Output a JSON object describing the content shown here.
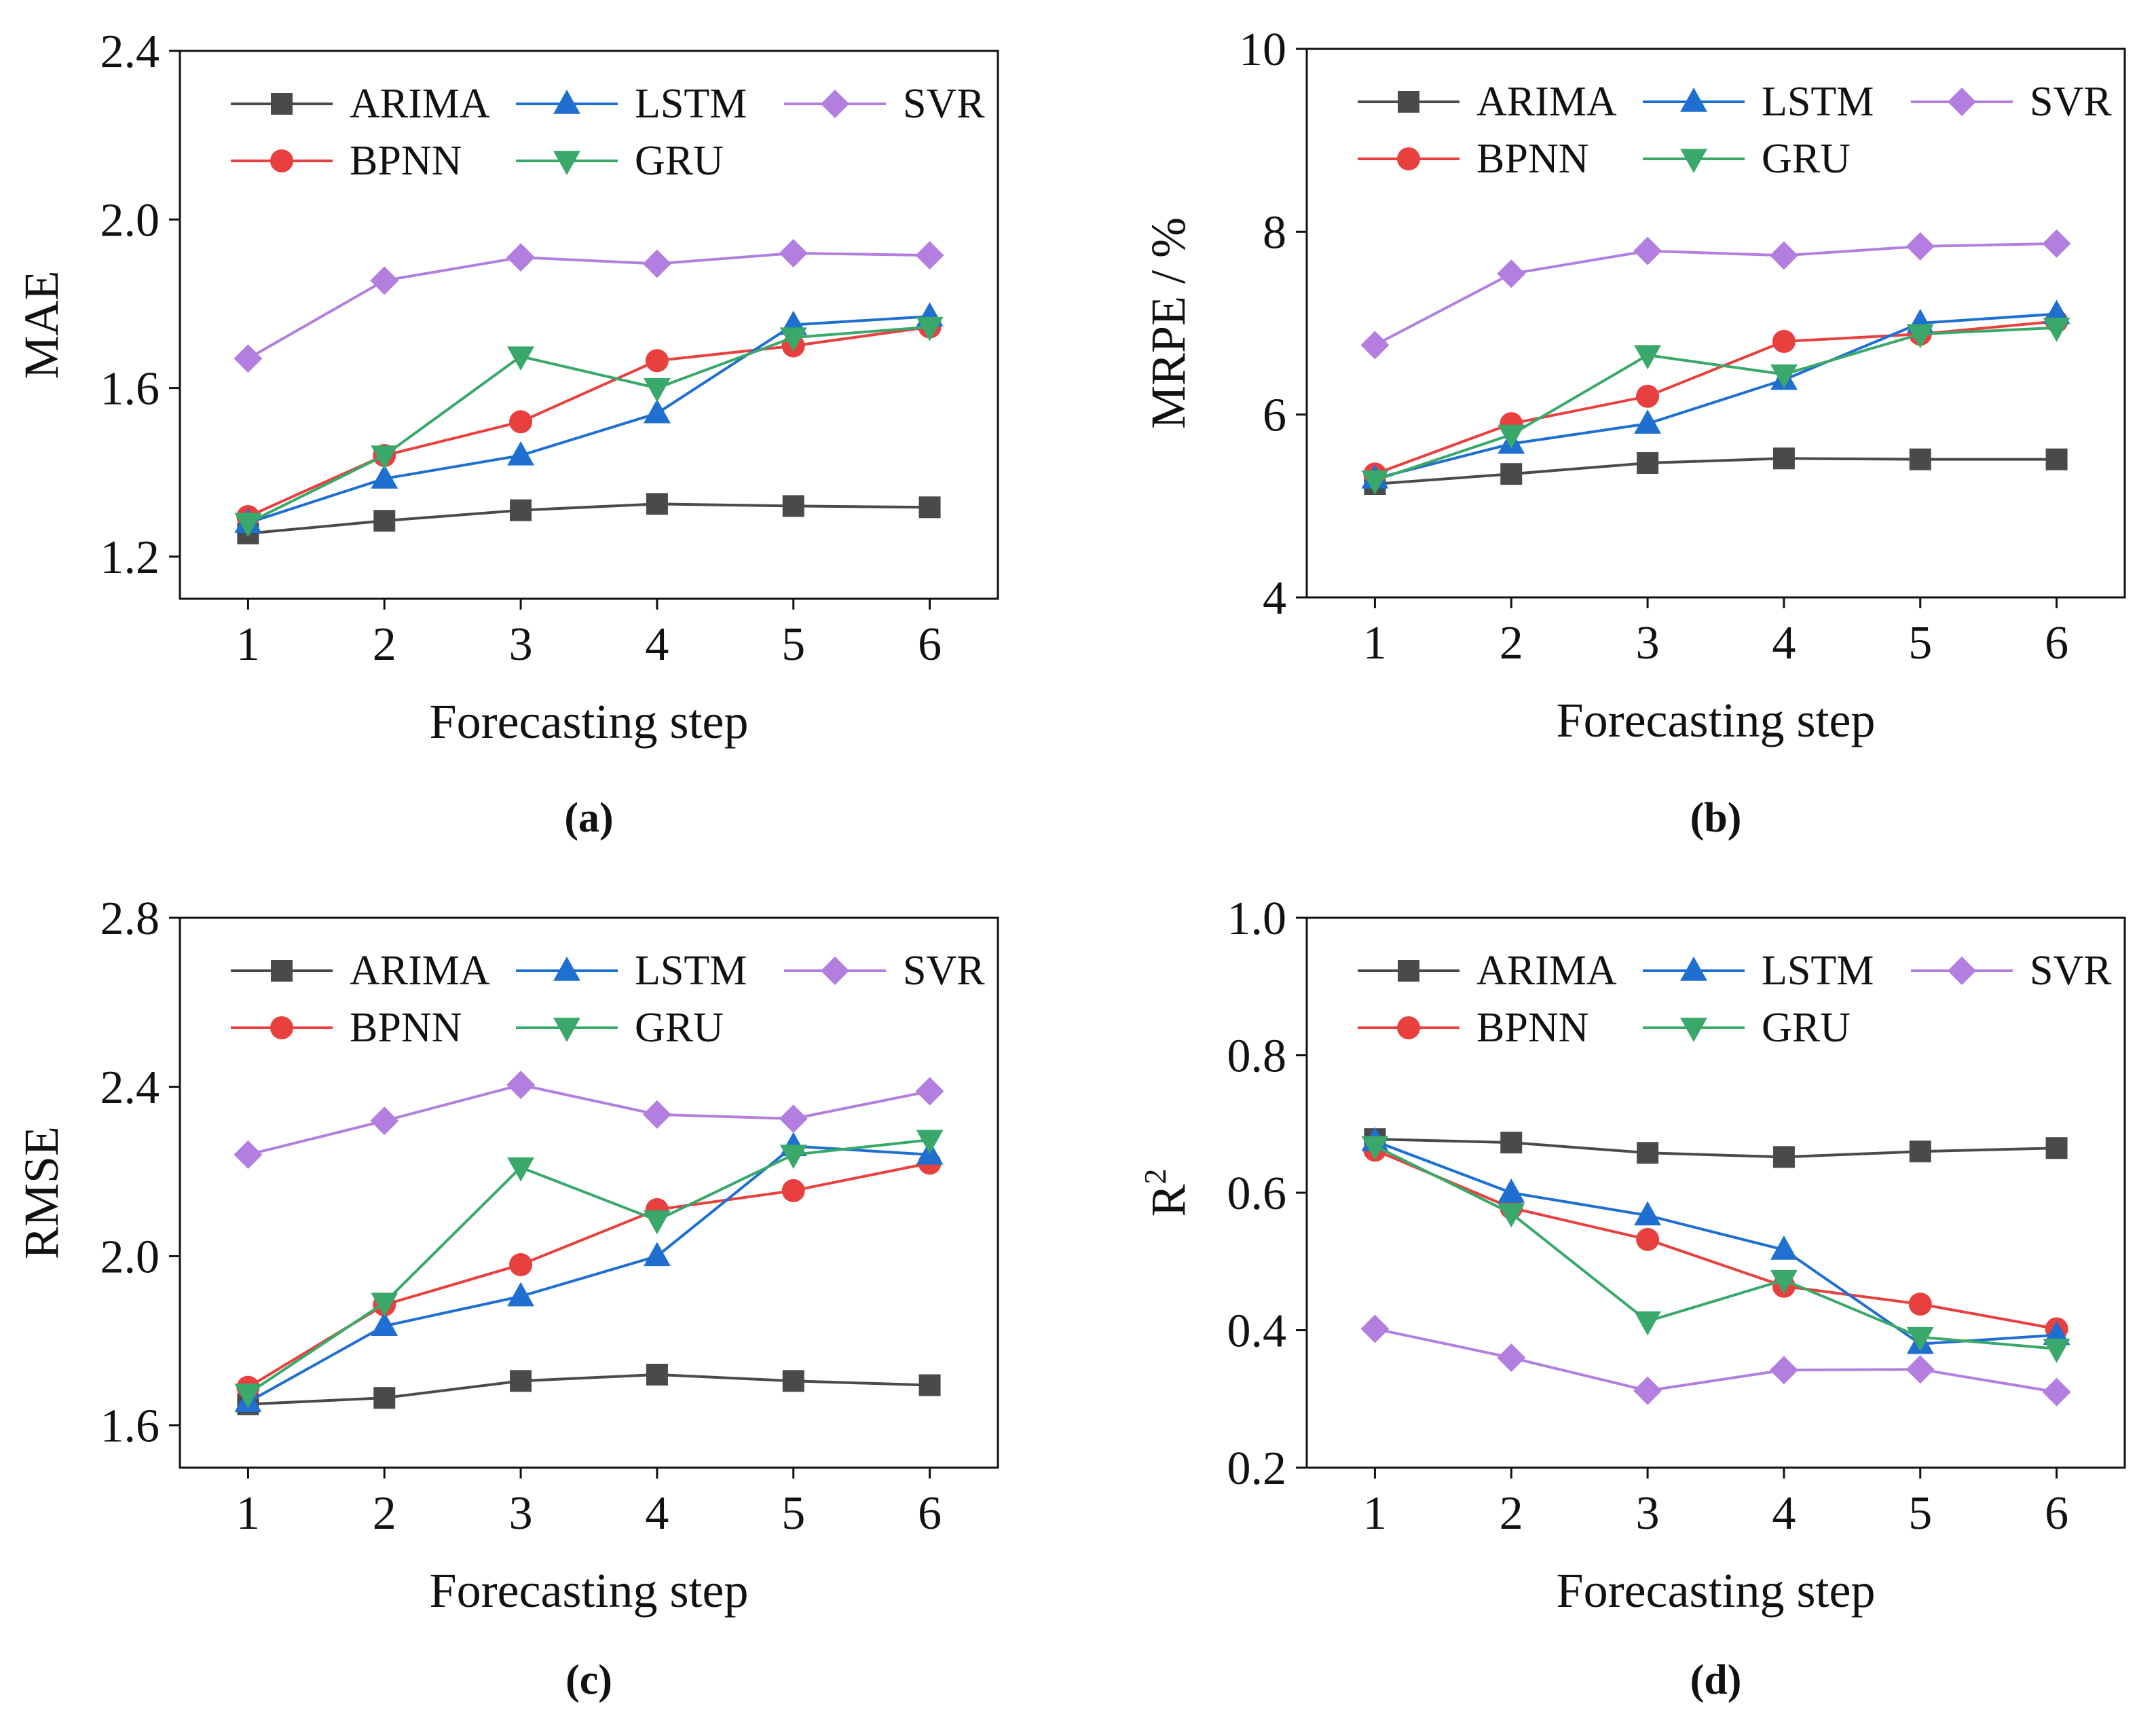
{
  "figure": {
    "series_styles": [
      {
        "name": "ARIMA",
        "color": "#4a4a4a",
        "marker": "square"
      },
      {
        "name": "LSTM",
        "color": "#1f6fd1",
        "marker": "triangle-up"
      },
      {
        "name": "SVR",
        "color": "#b27fe0",
        "marker": "diamond"
      },
      {
        "name": "BPNN",
        "color": "#e8403e",
        "marker": "circle"
      },
      {
        "name": "GRU",
        "color": "#3aa86a",
        "marker": "triangle-down"
      }
    ]
  },
  "chart_data": [
    {
      "id": "a",
      "type": "line",
      "panel_label": "(a)",
      "xlabel": "Forecasting step",
      "ylabel": "MAE",
      "ylabel_sup": "",
      "x": [
        1,
        2,
        3,
        4,
        5,
        6
      ],
      "xlim": [
        0.5,
        6.5
      ],
      "ylim": [
        1.1,
        2.4
      ],
      "yticks": [
        1.2,
        1.6,
        2.0,
        2.4
      ],
      "ytick_labels": [
        "1.2",
        "1.6",
        "2.0",
        "2.4"
      ],
      "legend_position": "top",
      "series": [
        {
          "name": "ARIMA",
          "values": [
            1.255,
            1.285,
            1.31,
            1.325,
            1.32,
            1.317
          ]
        },
        {
          "name": "BPNN",
          "values": [
            1.295,
            1.44,
            1.52,
            1.665,
            1.7,
            1.745
          ]
        },
        {
          "name": "LSTM",
          "values": [
            1.28,
            1.385,
            1.44,
            1.54,
            1.75,
            1.77
          ]
        },
        {
          "name": "GRU",
          "values": [
            1.28,
            1.44,
            1.675,
            1.6,
            1.72,
            1.745
          ]
        },
        {
          "name": "SVR",
          "values": [
            1.67,
            1.855,
            1.91,
            1.895,
            1.92,
            1.915
          ]
        }
      ]
    },
    {
      "id": "b",
      "type": "line",
      "panel_label": "(b)",
      "xlabel": "Forecasting step",
      "ylabel": "MRPE / %",
      "ylabel_sup": "",
      "x": [
        1,
        2,
        3,
        4,
        5,
        6
      ],
      "xlim": [
        0.5,
        6.5
      ],
      "ylim": [
        4,
        10
      ],
      "yticks": [
        4,
        6,
        8,
        10
      ],
      "ytick_labels": [
        "4",
        "6",
        "8",
        "10"
      ],
      "legend_position": "top",
      "series": [
        {
          "name": "ARIMA",
          "values": [
            5.24,
            5.35,
            5.47,
            5.52,
            5.51,
            5.51
          ]
        },
        {
          "name": "BPNN",
          "values": [
            5.35,
            5.9,
            6.2,
            6.8,
            6.88,
            7.02
          ]
        },
        {
          "name": "LSTM",
          "values": [
            5.3,
            5.68,
            5.9,
            6.38,
            7.0,
            7.1
          ]
        },
        {
          "name": "GRU",
          "values": [
            5.28,
            5.78,
            6.65,
            6.44,
            6.88,
            6.95
          ]
        },
        {
          "name": "SVR",
          "values": [
            6.76,
            7.54,
            7.79,
            7.74,
            7.84,
            7.87
          ]
        }
      ]
    },
    {
      "id": "c",
      "type": "line",
      "panel_label": "(c)",
      "xlabel": "Forecasting step",
      "ylabel": "RMSE",
      "ylabel_sup": "",
      "x": [
        1,
        2,
        3,
        4,
        5,
        6
      ],
      "xlim": [
        0.5,
        6.5
      ],
      "ylim": [
        1.5,
        2.8
      ],
      "yticks": [
        1.6,
        2.0,
        2.4,
        2.8
      ],
      "ytick_labels": [
        "1.6",
        "2.0",
        "2.4",
        "2.8"
      ],
      "legend_position": "top",
      "series": [
        {
          "name": "ARIMA",
          "values": [
            1.65,
            1.665,
            1.705,
            1.72,
            1.705,
            1.695
          ]
        },
        {
          "name": "BPNN",
          "values": [
            1.69,
            1.885,
            1.98,
            2.11,
            2.155,
            2.22
          ]
        },
        {
          "name": "LSTM",
          "values": [
            1.655,
            1.835,
            1.905,
            2.0,
            2.26,
            2.24
          ]
        },
        {
          "name": "GRU",
          "values": [
            1.675,
            1.89,
            2.21,
            2.085,
            2.24,
            2.275
          ]
        },
        {
          "name": "SVR",
          "values": [
            2.24,
            2.32,
            2.405,
            2.335,
            2.325,
            2.39
          ]
        }
      ]
    },
    {
      "id": "d",
      "type": "line",
      "panel_label": "(d)",
      "xlabel": "Forecasting step",
      "ylabel": "R",
      "ylabel_sup": "2",
      "x": [
        1,
        2,
        3,
        4,
        5,
        6
      ],
      "xlim": [
        0.5,
        6.5
      ],
      "ylim": [
        0.2,
        1.0
      ],
      "yticks": [
        0.2,
        0.4,
        0.6,
        0.8,
        1.0
      ],
      "ytick_labels": [
        "0.2",
        "0.4",
        "0.6",
        "0.8",
        "1.0"
      ],
      "legend_position": "top",
      "series": [
        {
          "name": "ARIMA",
          "values": [
            0.678,
            0.673,
            0.658,
            0.652,
            0.66,
            0.665
          ]
        },
        {
          "name": "BPNN",
          "values": [
            0.662,
            0.578,
            0.532,
            0.464,
            0.438,
            0.402
          ]
        },
        {
          "name": "LSTM",
          "values": [
            0.675,
            0.6,
            0.567,
            0.517,
            0.38,
            0.393
          ]
        },
        {
          "name": "GRU",
          "values": [
            0.668,
            0.57,
            0.413,
            0.473,
            0.39,
            0.373
          ]
        },
        {
          "name": "SVR",
          "values": [
            0.402,
            0.36,
            0.312,
            0.342,
            0.343,
            0.31
          ]
        }
      ]
    }
  ]
}
